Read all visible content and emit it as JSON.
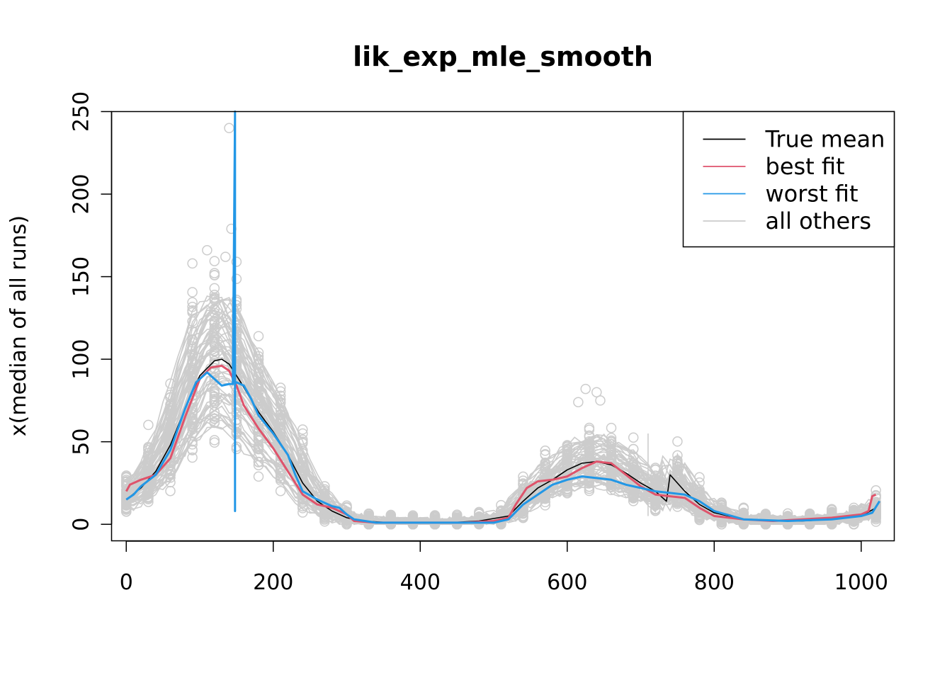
{
  "chart_data": {
    "type": "line",
    "title": "lik_exp_mle_smooth",
    "xlabel": "",
    "ylabel": "x(median of all runs)",
    "xlim": [
      -20,
      1045
    ],
    "ylim": [
      -10,
      250
    ],
    "xticks": [
      0,
      200,
      400,
      600,
      800,
      1000
    ],
    "yticks": [
      0,
      50,
      100,
      150,
      200,
      250
    ],
    "xtick_labels": [
      "0",
      "200",
      "400",
      "600",
      "800",
      "1000"
    ],
    "ytick_labels": [
      "0",
      "50",
      "100",
      "150",
      "200",
      "250"
    ],
    "grid": false,
    "legend": {
      "position": "top-right",
      "entries": [
        {
          "label": "True mean",
          "color": "#000000"
        },
        {
          "label": "best fit",
          "color": "#DF536B"
        },
        {
          "label": "worst fit",
          "color": "#2297E6"
        },
        {
          "label": "all others",
          "color": "#CCCCCC"
        }
      ]
    },
    "series": [
      {
        "name": "True mean",
        "color": "#000000",
        "x": [
          0,
          20,
          40,
          60,
          80,
          100,
          120,
          130,
          140,
          160,
          180,
          200,
          220,
          240,
          260,
          280,
          300,
          320,
          360,
          400,
          440,
          480,
          520,
          540,
          560,
          580,
          600,
          620,
          640,
          660,
          680,
          700,
          720,
          735,
          740,
          760,
          780,
          800,
          840,
          880,
          920,
          960,
          1000,
          1020
        ],
        "values": [
          15,
          22,
          32,
          48,
          70,
          90,
          99,
          100,
          97,
          83,
          68,
          56,
          42,
          25,
          14,
          8,
          4,
          2,
          1,
          1,
          1,
          2,
          5,
          14,
          22,
          27,
          33,
          37,
          38,
          36,
          31,
          25,
          20,
          14,
          30,
          20,
          12,
          7,
          3,
          2,
          2,
          3,
          5,
          10
        ]
      },
      {
        "name": "best fit",
        "color": "#DF536B",
        "x": [
          0,
          5,
          20,
          40,
          60,
          80,
          100,
          115,
          130,
          140,
          150,
          160,
          180,
          200,
          220,
          240,
          260,
          280,
          300,
          310,
          340,
          400,
          460,
          500,
          520,
          530,
          545,
          560,
          580,
          600,
          620,
          640,
          660,
          680,
          700,
          720,
          740,
          760,
          780,
          800,
          840,
          880,
          920,
          960,
          1000,
          1010,
          1015,
          1020
        ],
        "values": [
          20,
          24,
          27,
          30,
          40,
          65,
          88,
          95,
          96,
          93,
          84,
          72,
          58,
          46,
          32,
          18,
          12,
          10,
          6,
          2,
          1,
          1,
          1,
          2,
          4,
          12,
          22,
          26,
          27,
          29,
          34,
          38,
          37,
          30,
          23,
          18,
          17,
          16,
          10,
          5,
          3,
          2,
          3,
          4,
          6,
          8,
          17,
          18
        ]
      },
      {
        "name": "worst fit",
        "color": "#2297E6",
        "x": [
          0,
          10,
          20,
          40,
          60,
          80,
          95,
          110,
          120,
          130,
          140,
          145,
          148,
          148,
          148,
          150,
          160,
          170,
          180,
          200,
          220,
          230,
          240,
          260,
          280,
          290,
          300,
          310,
          340,
          400,
          460,
          500,
          520,
          540,
          560,
          580,
          600,
          620,
          640,
          660,
          680,
          700,
          720,
          740,
          760,
          780,
          800,
          840,
          900,
          960,
          1000,
          1015,
          1025
        ],
        "values": [
          15,
          18,
          23,
          30,
          45,
          70,
          86,
          92,
          88,
          84,
          85,
          85,
          250,
          8,
          85,
          86,
          84,
          76,
          66,
          55,
          42,
          30,
          20,
          15,
          11,
          10,
          6,
          3,
          1,
          1,
          1,
          1,
          3,
          12,
          18,
          24,
          27,
          29,
          28,
          27,
          24,
          22,
          20,
          19,
          18,
          14,
          8,
          3,
          2,
          3,
          5,
          7,
          14
        ]
      }
    ],
    "background": {
      "name": "all others",
      "color": "#CCCCCC",
      "description_values": "many gray lines and circles following the same two-peak shape with peaks near 100-160 at x~130 and near 40-80 at x~640"
    }
  }
}
